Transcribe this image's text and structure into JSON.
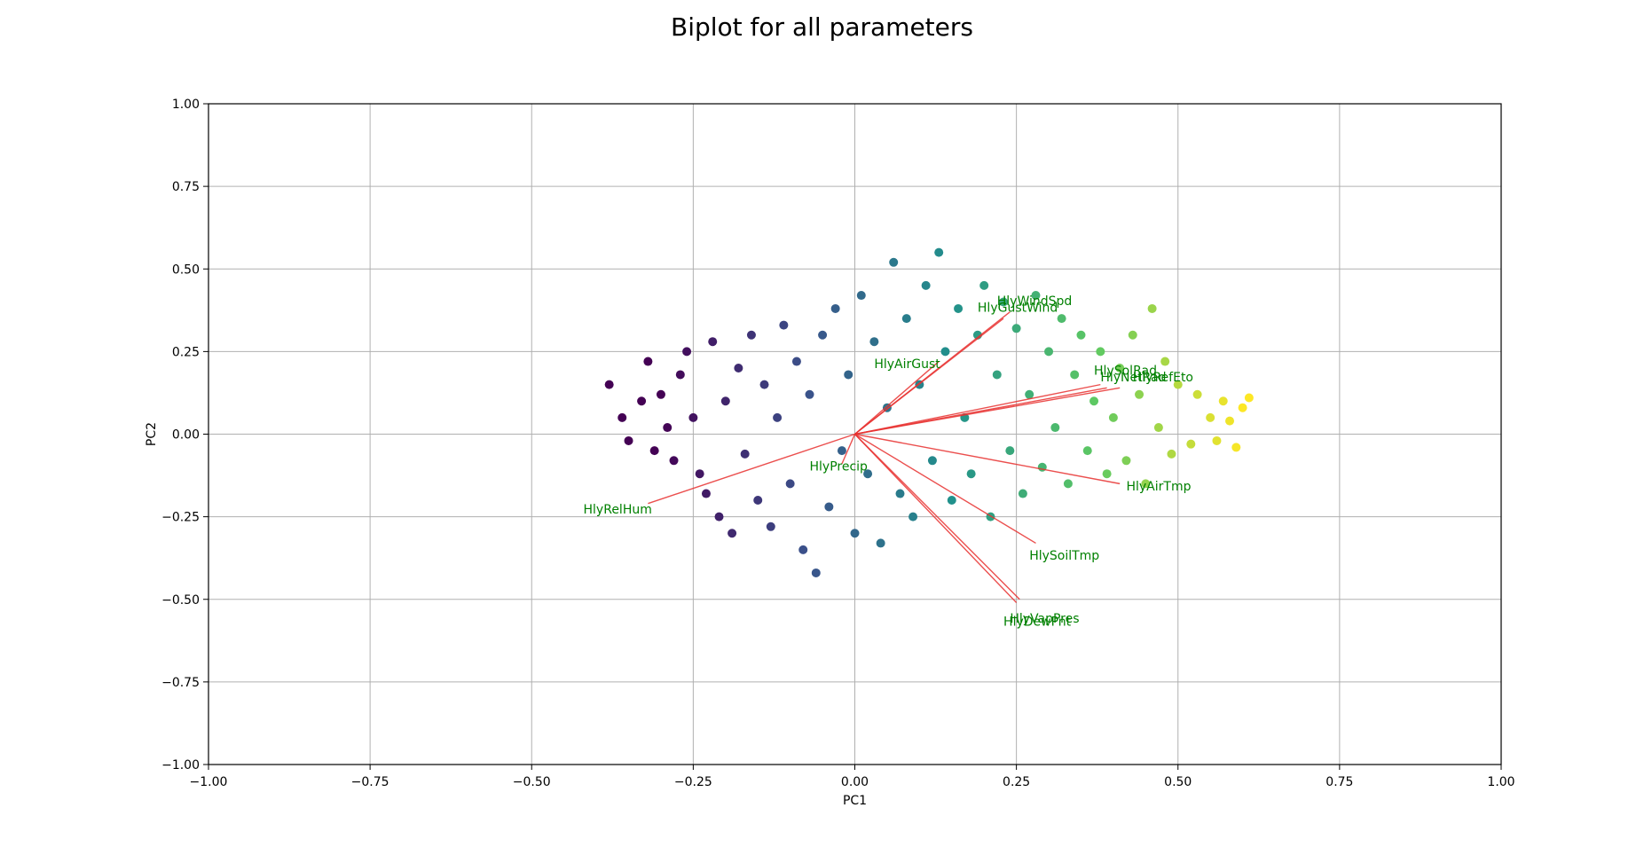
{
  "chart_data": {
    "type": "scatter",
    "title": "Biplot for all parameters",
    "xlabel": "PC1",
    "ylabel": "PC2",
    "xlim": [
      -1.0,
      1.0
    ],
    "ylim": [
      -1.0,
      1.0
    ],
    "grid": true,
    "x_ticks": [
      -1.0,
      -0.75,
      -0.5,
      -0.25,
      0.0,
      0.25,
      0.5,
      0.75,
      1.0
    ],
    "y_ticks": [
      -1.0,
      -0.75,
      -0.5,
      -0.25,
      0.0,
      0.25,
      0.5,
      0.75,
      1.0
    ],
    "x_tick_labels": [
      "−1.00",
      "−0.75",
      "−0.50",
      "−0.25",
      "0.00",
      "0.25",
      "0.50",
      "0.75",
      "1.00"
    ],
    "y_tick_labels": [
      "−1.00",
      "−0.75",
      "−0.50",
      "−0.25",
      "0.00",
      "0.25",
      "0.50",
      "0.75",
      "1.00"
    ],
    "colormap": [
      "#440154",
      "#3b528b",
      "#21918c",
      "#5ec962",
      "#fde725"
    ],
    "arrow_color": "#e8302f",
    "label_color": "#008000",
    "loadings": [
      {
        "name": "HlyWindSpd",
        "x": 0.24,
        "y": 0.37,
        "lx": 0.22,
        "ly": 0.39
      },
      {
        "name": "HlyGustWind",
        "x": 0.23,
        "y": 0.35,
        "lx": 0.19,
        "ly": 0.37
      },
      {
        "name": "HlyAirGust",
        "x": 0.13,
        "y": 0.22,
        "lx": 0.03,
        "ly": 0.2
      },
      {
        "name": "HlySolRad",
        "x": 0.38,
        "y": 0.15,
        "lx": 0.37,
        "ly": 0.18
      },
      {
        "name": "HlyNetRad",
        "x": 0.39,
        "y": 0.14,
        "lx": 0.38,
        "ly": 0.16
      },
      {
        "name": "HlyRefEto",
        "x": 0.41,
        "y": 0.14,
        "lx": 0.43,
        "ly": 0.16
      },
      {
        "name": "HlyAirTmp",
        "x": 0.41,
        "y": -0.15,
        "lx": 0.42,
        "ly": -0.17
      },
      {
        "name": "HlySoilTmp",
        "x": 0.28,
        "y": -0.33,
        "lx": 0.27,
        "ly": -0.38
      },
      {
        "name": "HlyVapPres",
        "x": 0.255,
        "y": -0.5,
        "lx": 0.24,
        "ly": -0.57
      },
      {
        "name": "HlyDewPnt",
        "x": 0.25,
        "y": -0.51,
        "lx": 0.23,
        "ly": -0.58
      },
      {
        "name": "HlyPrecip",
        "x": -0.02,
        "y": -0.09,
        "lx": -0.07,
        "ly": -0.11
      },
      {
        "name": "HlyRelHum",
        "x": -0.32,
        "y": -0.21,
        "lx": -0.42,
        "ly": -0.24
      }
    ],
    "scores": [
      [
        -0.38,
        0.15
      ],
      [
        -0.36,
        0.05
      ],
      [
        -0.35,
        -0.02
      ],
      [
        -0.33,
        0.1
      ],
      [
        -0.32,
        0.22
      ],
      [
        -0.31,
        -0.05
      ],
      [
        -0.3,
        0.12
      ],
      [
        -0.29,
        0.02
      ],
      [
        -0.28,
        -0.08
      ],
      [
        -0.27,
        0.18
      ],
      [
        -0.26,
        0.25
      ],
      [
        -0.25,
        0.05
      ],
      [
        -0.24,
        -0.12
      ],
      [
        -0.23,
        -0.18
      ],
      [
        -0.22,
        0.28
      ],
      [
        -0.21,
        -0.25
      ],
      [
        -0.2,
        0.1
      ],
      [
        -0.19,
        -0.3
      ],
      [
        -0.18,
        0.2
      ],
      [
        -0.17,
        -0.06
      ],
      [
        -0.16,
        0.3
      ],
      [
        -0.15,
        -0.2
      ],
      [
        -0.14,
        0.15
      ],
      [
        -0.13,
        -0.28
      ],
      [
        -0.12,
        0.05
      ],
      [
        -0.11,
        0.33
      ],
      [
        -0.1,
        -0.15
      ],
      [
        -0.09,
        0.22
      ],
      [
        -0.08,
        -0.35
      ],
      [
        -0.07,
        0.12
      ],
      [
        -0.06,
        -0.42
      ],
      [
        -0.05,
        0.3
      ],
      [
        -0.04,
        -0.22
      ],
      [
        -0.03,
        0.38
      ],
      [
        -0.02,
        -0.05
      ],
      [
        -0.01,
        0.18
      ],
      [
        0.0,
        -0.3
      ],
      [
        0.01,
        0.42
      ],
      [
        0.02,
        -0.12
      ],
      [
        0.03,
        0.28
      ],
      [
        0.04,
        -0.33
      ],
      [
        0.05,
        0.08
      ],
      [
        0.06,
        0.52
      ],
      [
        0.07,
        -0.18
      ],
      [
        0.08,
        0.35
      ],
      [
        0.09,
        -0.25
      ],
      [
        0.1,
        0.15
      ],
      [
        0.11,
        0.45
      ],
      [
        0.12,
        -0.08
      ],
      [
        0.13,
        0.55
      ],
      [
        0.14,
        0.25
      ],
      [
        0.15,
        -0.2
      ],
      [
        0.16,
        0.38
      ],
      [
        0.17,
        0.05
      ],
      [
        0.18,
        -0.12
      ],
      [
        0.19,
        0.3
      ],
      [
        0.2,
        0.45
      ],
      [
        0.21,
        -0.25
      ],
      [
        0.22,
        0.18
      ],
      [
        0.23,
        0.4
      ],
      [
        0.24,
        -0.05
      ],
      [
        0.25,
        0.32
      ],
      [
        0.26,
        -0.18
      ],
      [
        0.27,
        0.12
      ],
      [
        0.28,
        0.42
      ],
      [
        0.29,
        -0.1
      ],
      [
        0.3,
        0.25
      ],
      [
        0.31,
        0.02
      ],
      [
        0.32,
        0.35
      ],
      [
        0.33,
        -0.15
      ],
      [
        0.34,
        0.18
      ],
      [
        0.35,
        0.3
      ],
      [
        0.36,
        -0.05
      ],
      [
        0.37,
        0.1
      ],
      [
        0.38,
        0.25
      ],
      [
        0.39,
        -0.12
      ],
      [
        0.4,
        0.05
      ],
      [
        0.41,
        0.2
      ],
      [
        0.42,
        -0.08
      ],
      [
        0.43,
        0.3
      ],
      [
        0.44,
        0.12
      ],
      [
        0.45,
        -0.15
      ],
      [
        0.46,
        0.38
      ],
      [
        0.47,
        0.02
      ],
      [
        0.48,
        0.22
      ],
      [
        0.49,
        -0.06
      ],
      [
        0.5,
        0.15
      ],
      [
        0.52,
        -0.03
      ],
      [
        0.53,
        0.12
      ],
      [
        0.55,
        0.05
      ],
      [
        0.56,
        -0.02
      ],
      [
        0.57,
        0.1
      ],
      [
        0.58,
        0.04
      ],
      [
        0.59,
        -0.04
      ],
      [
        0.6,
        0.08
      ],
      [
        0.61,
        0.11
      ]
    ]
  }
}
